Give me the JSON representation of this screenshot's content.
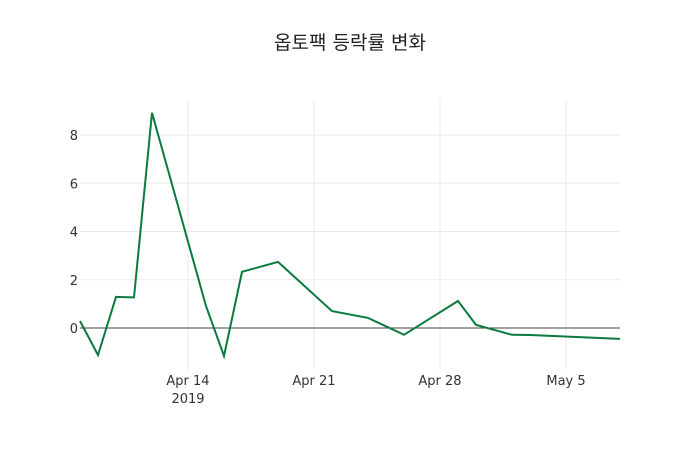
{
  "chart_data": {
    "type": "line",
    "title": "옵토팩 등락률 변화",
    "xlabel": "",
    "ylabel": "",
    "x": [
      "2019-04-08",
      "2019-04-09",
      "2019-04-10",
      "2019-04-11",
      "2019-04-12",
      "2019-04-15",
      "2019-04-16",
      "2019-04-17",
      "2019-04-19",
      "2019-04-22",
      "2019-04-24",
      "2019-04-26",
      "2019-04-29",
      "2019-04-30",
      "2019-05-02",
      "2019-05-03",
      "2019-05-08"
    ],
    "series": [
      {
        "name": "등락률",
        "color": "#0b7a3e",
        "values": [
          0.29,
          -1.12,
          1.29,
          1.27,
          8.92,
          0.91,
          -1.16,
          2.33,
          2.74,
          0.7,
          0.42,
          -0.28,
          1.12,
          0.13,
          -0.28,
          -0.29,
          -0.45
        ]
      }
    ],
    "x_ticks": [
      {
        "label": "Apr 14",
        "sublabel": "2019",
        "date": "2019-04-14"
      },
      {
        "label": "Apr 21",
        "date": "2019-04-21"
      },
      {
        "label": "Apr 28",
        "date": "2019-04-28"
      },
      {
        "label": "May 5",
        "date": "2019-05-05"
      }
    ],
    "y_ticks": [
      0,
      2,
      4,
      6,
      8
    ],
    "ylim": [
      -1.5,
      9.5
    ],
    "xlim": [
      "2019-04-08",
      "2019-05-08"
    ],
    "grid": true,
    "zero_line": true,
    "legend": "none"
  }
}
